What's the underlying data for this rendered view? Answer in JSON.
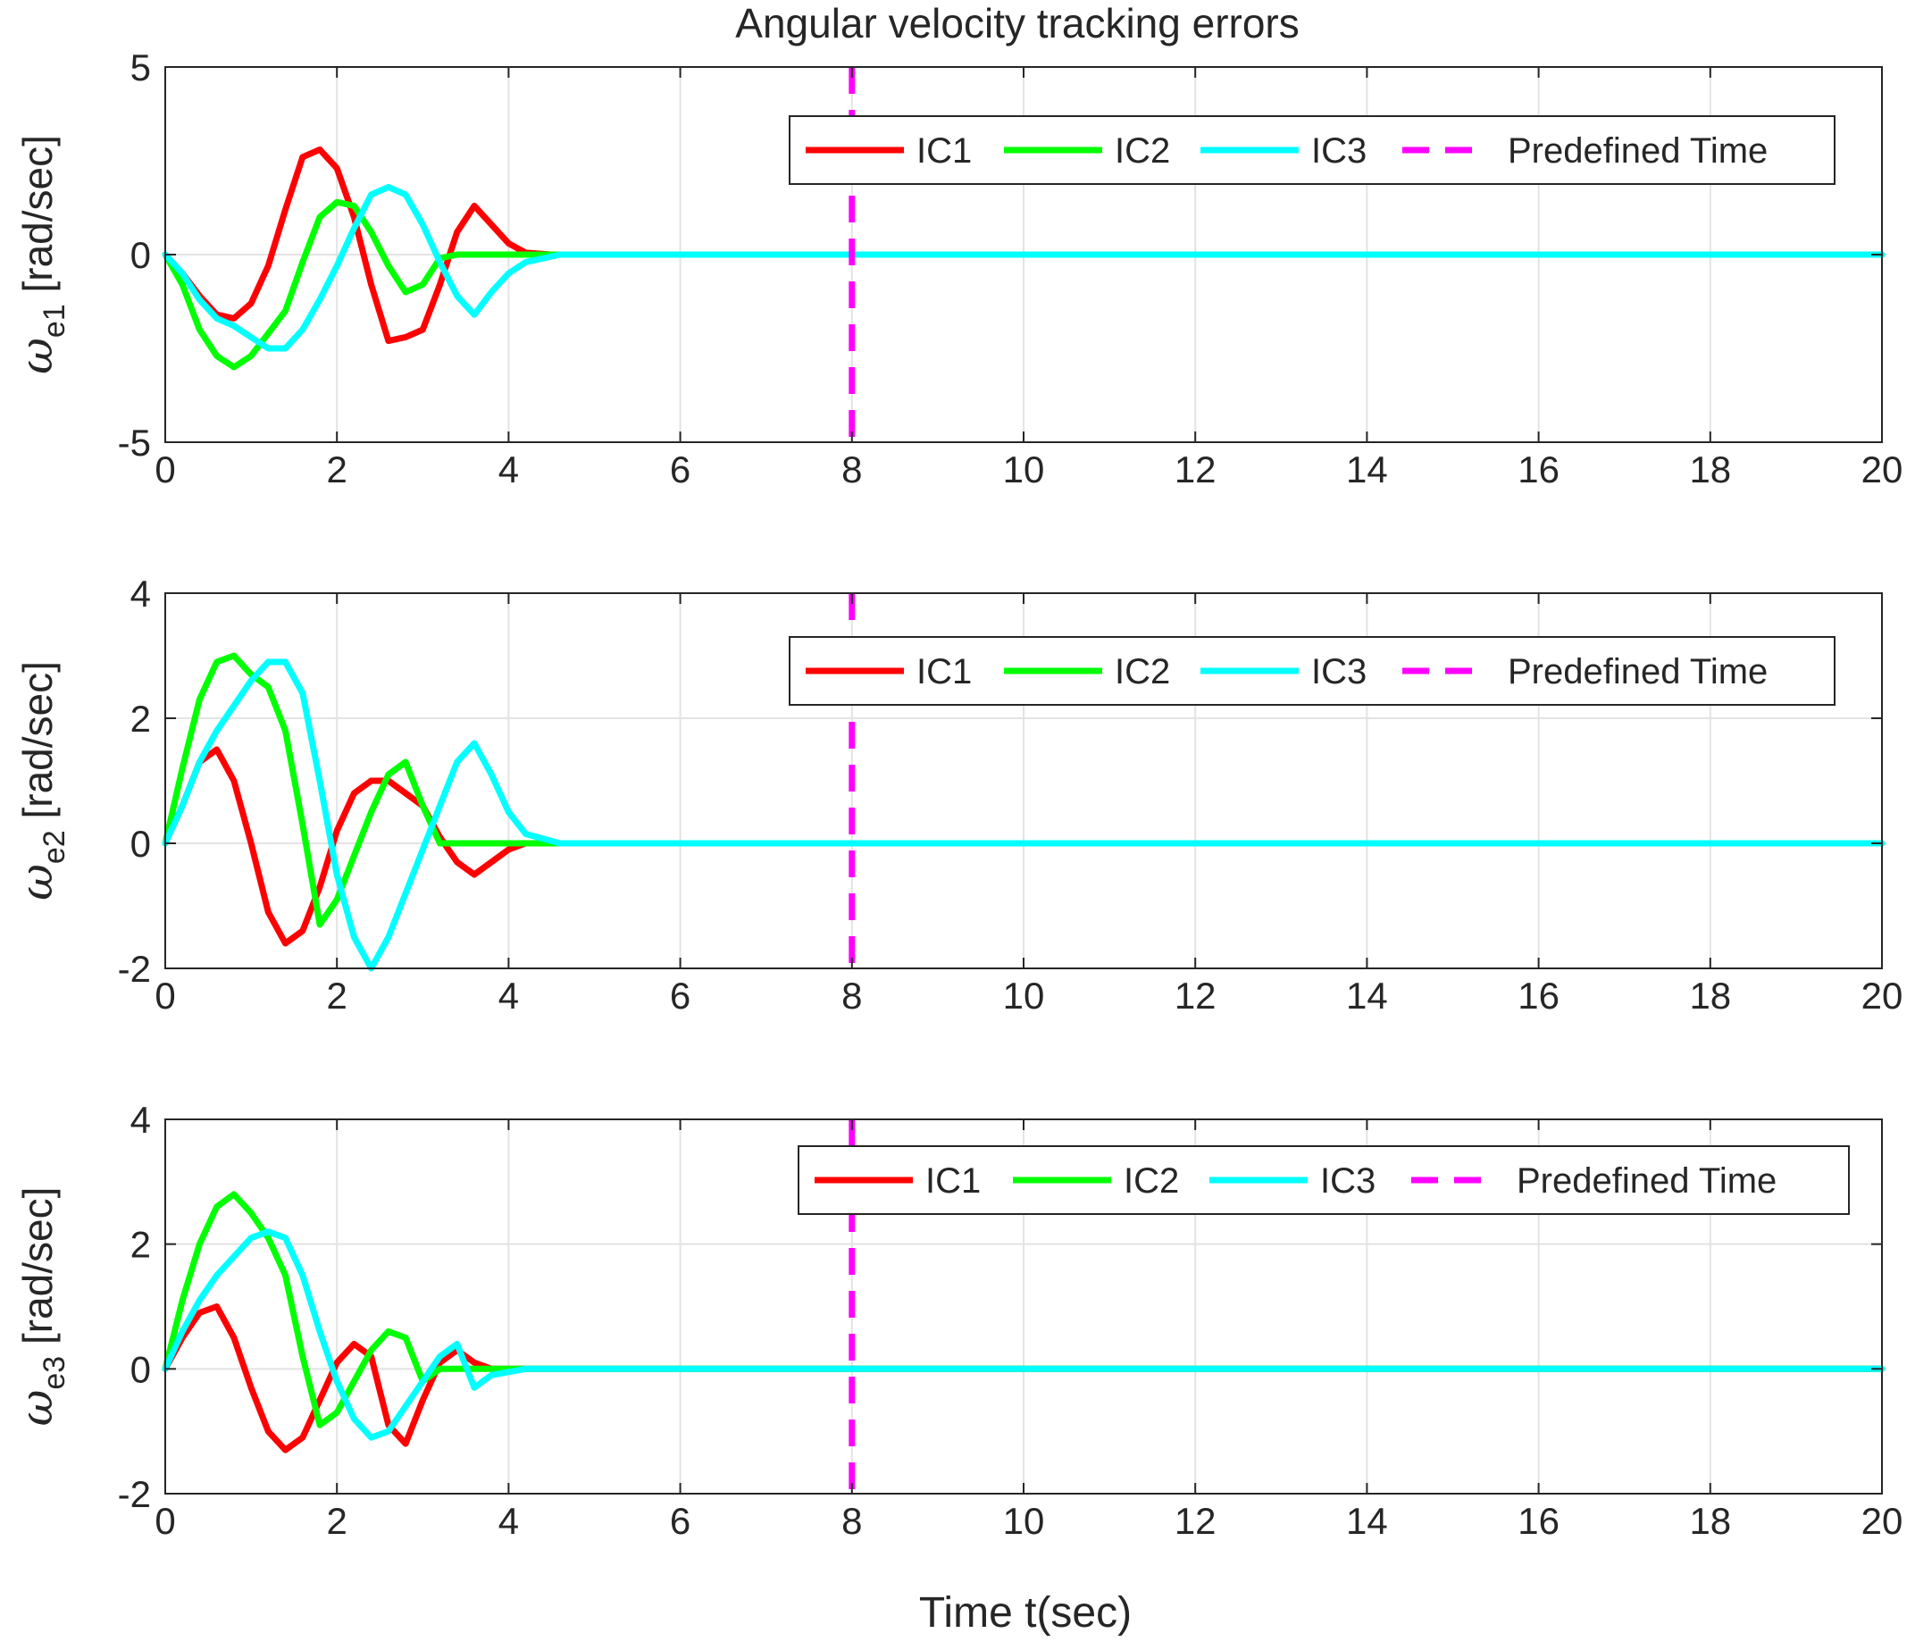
{
  "figure_title": "Angular velocity tracking errors",
  "x_axis_label": "Time t(sec)",
  "colors": {
    "IC1": "#ff0000",
    "IC2": "#00ff00",
    "IC3": "#00ffff",
    "Predefined Time": "#ff00ff",
    "grid": "#e3e3e3",
    "axes": "#262626"
  },
  "chart_data": [
    {
      "type": "line",
      "id": "we1",
      "title": "Angular velocity tracking errors",
      "xlabel": "Time t(sec)",
      "ylabel_symbol": "ω",
      "ylabel_subscript": "e1",
      "ylabel_unit": " [rad/sec]",
      "xlim": [
        0,
        20
      ],
      "ylim": [
        -5,
        5
      ],
      "xticks": [
        0,
        2,
        4,
        6,
        8,
        10,
        12,
        14,
        16,
        18,
        20
      ],
      "yticks": [
        -5,
        0,
        5
      ],
      "grid": true,
      "legend": [
        "IC1",
        "IC2",
        "IC3",
        "Predefined Time"
      ],
      "legend_position": "top-right",
      "predefined_time": 8,
      "series": [
        {
          "name": "IC1",
          "x": [
            0,
            0.2,
            0.4,
            0.6,
            0.8,
            1.0,
            1.2,
            1.4,
            1.6,
            1.8,
            2.0,
            2.2,
            2.4,
            2.6,
            2.8,
            3.0,
            3.2,
            3.4,
            3.6,
            3.8,
            4.0,
            4.2,
            4.5,
            5,
            20
          ],
          "y": [
            0,
            -0.5,
            -1.1,
            -1.6,
            -1.7,
            -1.3,
            -0.3,
            1.2,
            2.6,
            2.8,
            2.3,
            1.0,
            -0.8,
            -2.3,
            -2.2,
            -2.0,
            -0.8,
            0.6,
            1.3,
            0.8,
            0.3,
            0.05,
            0,
            0,
            0
          ]
        },
        {
          "name": "IC2",
          "x": [
            0,
            0.2,
            0.4,
            0.6,
            0.8,
            1.0,
            1.2,
            1.4,
            1.6,
            1.8,
            2.0,
            2.2,
            2.4,
            2.6,
            2.8,
            3.0,
            3.2,
            3.4,
            3.6,
            4.0,
            20
          ],
          "y": [
            0,
            -0.8,
            -2.0,
            -2.7,
            -3.0,
            -2.7,
            -2.1,
            -1.5,
            -0.2,
            1.0,
            1.4,
            1.3,
            0.6,
            -0.3,
            -1.0,
            -0.8,
            -0.1,
            0,
            0,
            0,
            0
          ]
        },
        {
          "name": "IC3",
          "x": [
            0,
            0.2,
            0.4,
            0.6,
            0.8,
            1.0,
            1.2,
            1.4,
            1.6,
            1.8,
            2.0,
            2.2,
            2.4,
            2.6,
            2.8,
            3.0,
            3.2,
            3.4,
            3.6,
            3.8,
            4.0,
            4.2,
            4.6,
            5,
            20
          ],
          "y": [
            0,
            -0.5,
            -1.2,
            -1.7,
            -1.9,
            -2.2,
            -2.5,
            -2.5,
            -2.0,
            -1.2,
            -0.3,
            0.7,
            1.6,
            1.8,
            1.6,
            0.8,
            -0.2,
            -1.1,
            -1.6,
            -1.0,
            -0.5,
            -0.2,
            0,
            0,
            0
          ]
        }
      ]
    },
    {
      "type": "line",
      "id": "we2",
      "xlabel": "Time t(sec)",
      "ylabel_symbol": "ω",
      "ylabel_subscript": "e2",
      "ylabel_unit": " [rad/sec]",
      "xlim": [
        0,
        20
      ],
      "ylim": [
        -2,
        4
      ],
      "xticks": [
        0,
        2,
        4,
        6,
        8,
        10,
        12,
        14,
        16,
        18,
        20
      ],
      "yticks": [
        -2,
        0,
        2,
        4
      ],
      "grid": true,
      "legend": [
        "IC1",
        "IC2",
        "IC3",
        "Predefined Time"
      ],
      "legend_position": "top-right",
      "predefined_time": 8,
      "series": [
        {
          "name": "IC1",
          "x": [
            0,
            0.2,
            0.4,
            0.6,
            0.8,
            1.0,
            1.2,
            1.4,
            1.6,
            1.8,
            2.0,
            2.2,
            2.4,
            2.6,
            2.8,
            3.0,
            3.2,
            3.4,
            3.6,
            3.8,
            4.0,
            4.2,
            5,
            20
          ],
          "y": [
            0,
            0.6,
            1.3,
            1.5,
            1.0,
            0.0,
            -1.1,
            -1.6,
            -1.4,
            -0.7,
            0.2,
            0.8,
            1.0,
            1.0,
            0.8,
            0.6,
            0.1,
            -0.3,
            -0.5,
            -0.3,
            -0.1,
            0,
            0,
            0
          ]
        },
        {
          "name": "IC2",
          "x": [
            0,
            0.2,
            0.4,
            0.6,
            0.8,
            1.0,
            1.2,
            1.4,
            1.6,
            1.8,
            2.0,
            2.2,
            2.4,
            2.6,
            2.8,
            3.0,
            3.2,
            3.4,
            3.6,
            4.0,
            20
          ],
          "y": [
            0,
            1.2,
            2.3,
            2.9,
            3.0,
            2.7,
            2.5,
            1.8,
            0.3,
            -1.3,
            -0.9,
            -0.2,
            0.5,
            1.1,
            1.3,
            0.6,
            0,
            0,
            0,
            0,
            0
          ]
        },
        {
          "name": "IC3",
          "x": [
            0,
            0.2,
            0.4,
            0.6,
            0.8,
            1.0,
            1.2,
            1.4,
            1.6,
            1.8,
            2.0,
            2.2,
            2.4,
            2.6,
            2.8,
            3.0,
            3.2,
            3.4,
            3.6,
            3.8,
            4.0,
            4.2,
            4.6,
            20
          ],
          "y": [
            0,
            0.6,
            1.3,
            1.8,
            2.2,
            2.6,
            2.9,
            2.9,
            2.4,
            1.0,
            -0.5,
            -1.5,
            -2.0,
            -1.5,
            -0.8,
            -0.1,
            0.6,
            1.3,
            1.6,
            1.1,
            0.5,
            0.15,
            0,
            0
          ]
        }
      ]
    },
    {
      "type": "line",
      "id": "we3",
      "xlabel": "Time t(sec)",
      "ylabel_symbol": "ω",
      "ylabel_subscript": "e3",
      "ylabel_unit": " [rad/sec]",
      "xlim": [
        0,
        20
      ],
      "ylim": [
        -2,
        4
      ],
      "xticks": [
        0,
        2,
        4,
        6,
        8,
        10,
        12,
        14,
        16,
        18,
        20
      ],
      "yticks": [
        -2,
        0,
        2,
        4
      ],
      "grid": true,
      "legend": [
        "IC1",
        "IC2",
        "IC3",
        "Predefined Time"
      ],
      "legend_position": "top-right",
      "predefined_time": 8,
      "series": [
        {
          "name": "IC1",
          "x": [
            0,
            0.2,
            0.4,
            0.6,
            0.8,
            1.0,
            1.2,
            1.4,
            1.6,
            1.8,
            2.0,
            2.2,
            2.4,
            2.6,
            2.8,
            3.0,
            3.2,
            3.4,
            3.6,
            3.8,
            4.2,
            20
          ],
          "y": [
            0,
            0.5,
            0.9,
            1.0,
            0.5,
            -0.3,
            -1.0,
            -1.3,
            -1.1,
            -0.5,
            0.1,
            0.4,
            0.2,
            -0.9,
            -1.2,
            -0.5,
            0.1,
            0.3,
            0.1,
            0,
            0,
            0
          ]
        },
        {
          "name": "IC2",
          "x": [
            0,
            0.2,
            0.4,
            0.6,
            0.8,
            1.0,
            1.2,
            1.4,
            1.6,
            1.8,
            2.0,
            2.2,
            2.4,
            2.6,
            2.8,
            3.0,
            3.2,
            3.4,
            3.6,
            4.0,
            20
          ],
          "y": [
            0,
            1.1,
            2.0,
            2.6,
            2.8,
            2.5,
            2.1,
            1.5,
            0.2,
            -0.9,
            -0.7,
            -0.2,
            0.3,
            0.6,
            0.5,
            -0.2,
            0,
            0,
            0,
            0,
            0
          ]
        },
        {
          "name": "IC3",
          "x": [
            0,
            0.2,
            0.4,
            0.6,
            0.8,
            1.0,
            1.2,
            1.4,
            1.6,
            1.8,
            2.0,
            2.2,
            2.4,
            2.6,
            2.8,
            3.0,
            3.2,
            3.4,
            3.6,
            3.8,
            4.2,
            20
          ],
          "y": [
            0,
            0.6,
            1.1,
            1.5,
            1.8,
            2.1,
            2.2,
            2.1,
            1.5,
            0.6,
            -0.2,
            -0.8,
            -1.1,
            -1.0,
            -0.6,
            -0.2,
            0.2,
            0.4,
            -0.3,
            -0.1,
            0,
            0
          ]
        }
      ]
    }
  ]
}
